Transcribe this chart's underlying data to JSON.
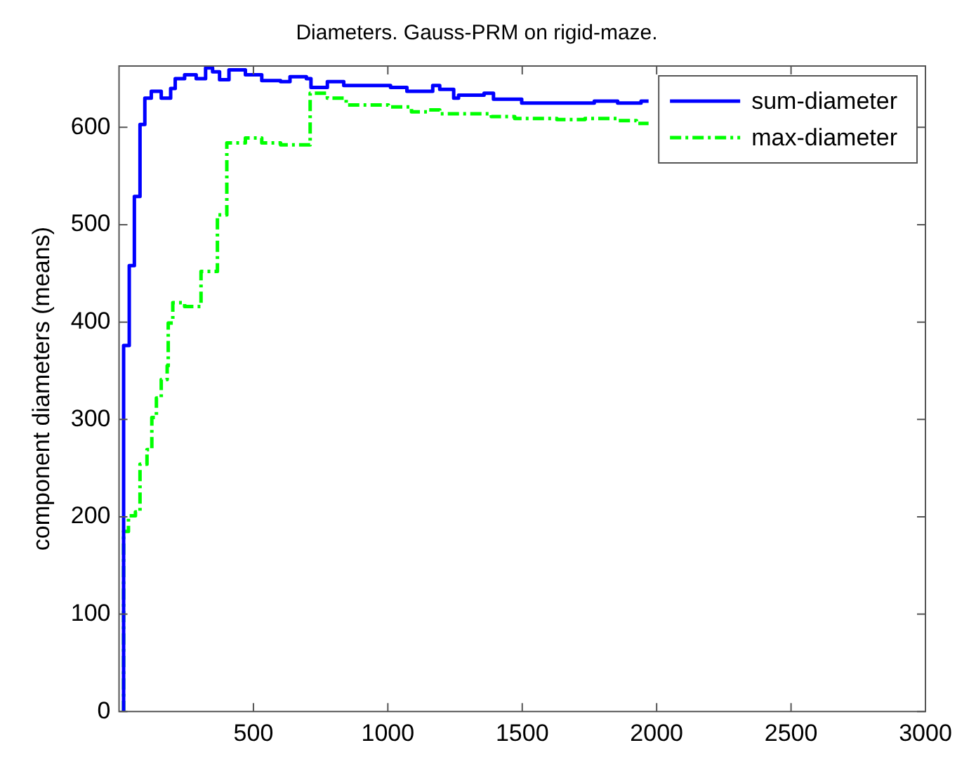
{
  "chart_data": {
    "type": "step",
    "title": "Diameters. Gauss-PRM on rigid-maze.",
    "ylabel": "component diameters (means)",
    "xlim": [
      0,
      3000
    ],
    "xticks": [
      500,
      1000,
      1500,
      2000,
      2500,
      3000
    ],
    "ylim": [
      0,
      663
    ],
    "yticks": [
      0,
      100,
      200,
      300,
      400,
      500,
      600
    ],
    "legend": "top right",
    "series": [
      {
        "name": "sum-diameter",
        "color": "#0000ff",
        "line_style": "solid",
        "x": [
          15,
          17,
          38,
          57,
          78,
          96,
          120,
          157,
          192,
          209,
          244,
          287,
          322,
          348,
          374,
          409,
          470,
          531,
          601,
          636,
          697,
          714,
          775,
          836,
          914,
          1010,
          1071,
          1167,
          1193,
          1245,
          1263,
          1358,
          1393,
          1498,
          1646,
          1768,
          1855,
          1942,
          1970
        ],
        "values": [
          0,
          376,
          458,
          529,
          603,
          630,
          637,
          630,
          640,
          650,
          654,
          650,
          661,
          657,
          649,
          659,
          654,
          648,
          647,
          652,
          650,
          641,
          647,
          643,
          643,
          641,
          637,
          643,
          639,
          630,
          633,
          635,
          629,
          625,
          625,
          627,
          625,
          627,
          627
        ]
      },
      {
        "name": "max-diameter",
        "color": "#00ff00",
        "line_style": "dashdot",
        "x": [
          15,
          17,
          35,
          61,
          78,
          104,
          122,
          139,
          157,
          179,
          183,
          200,
          244,
          305,
          366,
          401,
          470,
          531,
          601,
          711,
          775,
          845,
          1002,
          1088,
          1149,
          1193,
          1385,
          1472,
          1629,
          1733,
          1855,
          1925,
          1970
        ],
        "values": [
          0,
          185,
          201,
          205,
          254,
          269,
          302,
          322,
          341,
          355,
          399,
          420,
          416,
          452,
          510,
          584,
          589,
          584,
          582,
          635,
          630,
          623,
          621,
          616,
          618,
          614,
          611,
          609,
          608,
          609,
          607,
          604,
          604
        ]
      }
    ]
  }
}
